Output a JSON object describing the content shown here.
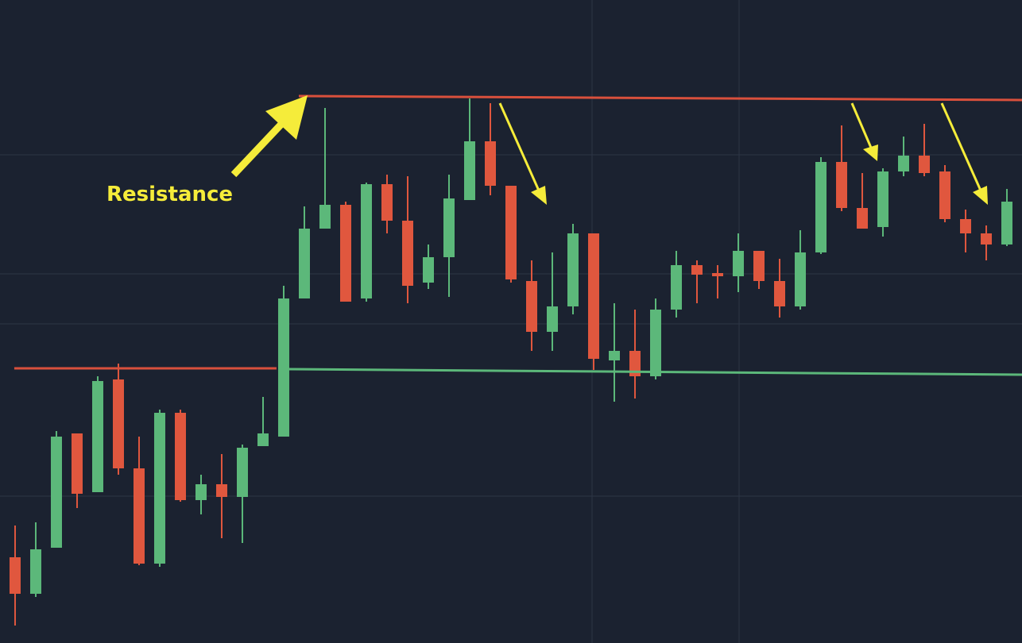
{
  "chart_data": {
    "type": "candlestick",
    "annotation": "Resistance",
    "up_color": "#5cb87a",
    "down_color": "#e0573e",
    "ylim": [
      0,
      81
    ],
    "xlim": [
      -0.73,
      48.73
    ],
    "open": [
      10.8,
      6.2,
      12.0,
      26.4,
      19.0,
      33.2,
      22.0,
      10.0,
      29.0,
      18.0,
      20.0,
      18.4,
      24.8,
      26.0,
      43.4,
      52.2,
      55.2,
      43.4,
      57.8,
      53.2,
      45.4,
      48.6,
      55.8,
      63.2,
      57.6,
      45.6,
      39.2,
      42.4,
      51.6,
      35.6,
      36.8,
      33.6,
      42.0,
      47.6,
      46.6,
      46.2,
      49.4,
      45.6,
      42.4,
      49.2,
      60.6,
      54.8,
      52.4,
      59.4,
      61.4,
      59.4,
      53.4,
      51.6,
      50.2
    ],
    "high": [
      14.8,
      15.2,
      26.7,
      26.4,
      33.6,
      35.2,
      26.0,
      29.4,
      29.4,
      21.2,
      23.8,
      25.0,
      31.0,
      45.0,
      55.0,
      67.4,
      55.6,
      58.0,
      59.0,
      58.8,
      50.2,
      59.0,
      68.6,
      68.0,
      57.6,
      48.2,
      49.2,
      52.8,
      51.6,
      42.8,
      42.0,
      43.4,
      49.4,
      48.2,
      47.6,
      51.6,
      49.4,
      48.4,
      52.0,
      61.2,
      65.2,
      59.2,
      59.8,
      63.8,
      65.4,
      60.2,
      54.6,
      52.6,
      57.2
    ],
    "low": [
      2.2,
      5.8,
      12.0,
      17.0,
      19.0,
      21.2,
      9.8,
      9.6,
      17.8,
      16.2,
      13.2,
      12.6,
      24.8,
      26.0,
      43.4,
      52.2,
      43.0,
      43.0,
      51.6,
      42.8,
      44.6,
      43.6,
      55.8,
      56.4,
      45.4,
      36.8,
      36.8,
      41.4,
      34.4,
      30.4,
      30.8,
      33.2,
      41.0,
      42.8,
      43.4,
      44.2,
      44.6,
      41.0,
      42.0,
      49.0,
      54.4,
      52.2,
      51.2,
      58.8,
      58.8,
      53.0,
      49.2,
      48.2,
      50.0
    ],
    "close": [
      6.2,
      11.8,
      26.0,
      18.8,
      33.0,
      22.0,
      10.0,
      29.0,
      18.0,
      20.0,
      18.4,
      24.6,
      26.4,
      43.4,
      52.2,
      55.2,
      43.0,
      57.8,
      53.2,
      45.0,
      48.6,
      56.0,
      63.2,
      57.6,
      45.8,
      39.2,
      42.4,
      51.6,
      35.8,
      36.8,
      33.6,
      42.0,
      47.6,
      46.4,
      46.2,
      49.4,
      45.6,
      42.4,
      49.2,
      60.6,
      54.8,
      52.2,
      59.4,
      61.4,
      59.2,
      53.4,
      51.6,
      50.2,
      55.6
    ],
    "levels": [
      {
        "color": "#d9503c",
        "x": [
          -0.04,
          12.65
        ],
        "values": [
          34.6,
          34.6
        ]
      },
      {
        "color": "#d9503c",
        "x": [
          13.73,
          48.73
        ],
        "values": [
          68.9,
          68.4
        ]
      },
      {
        "color": "#5cb87a",
        "x": [
          13.19,
          48.73
        ],
        "values": [
          34.5,
          33.8
        ]
      }
    ]
  }
}
